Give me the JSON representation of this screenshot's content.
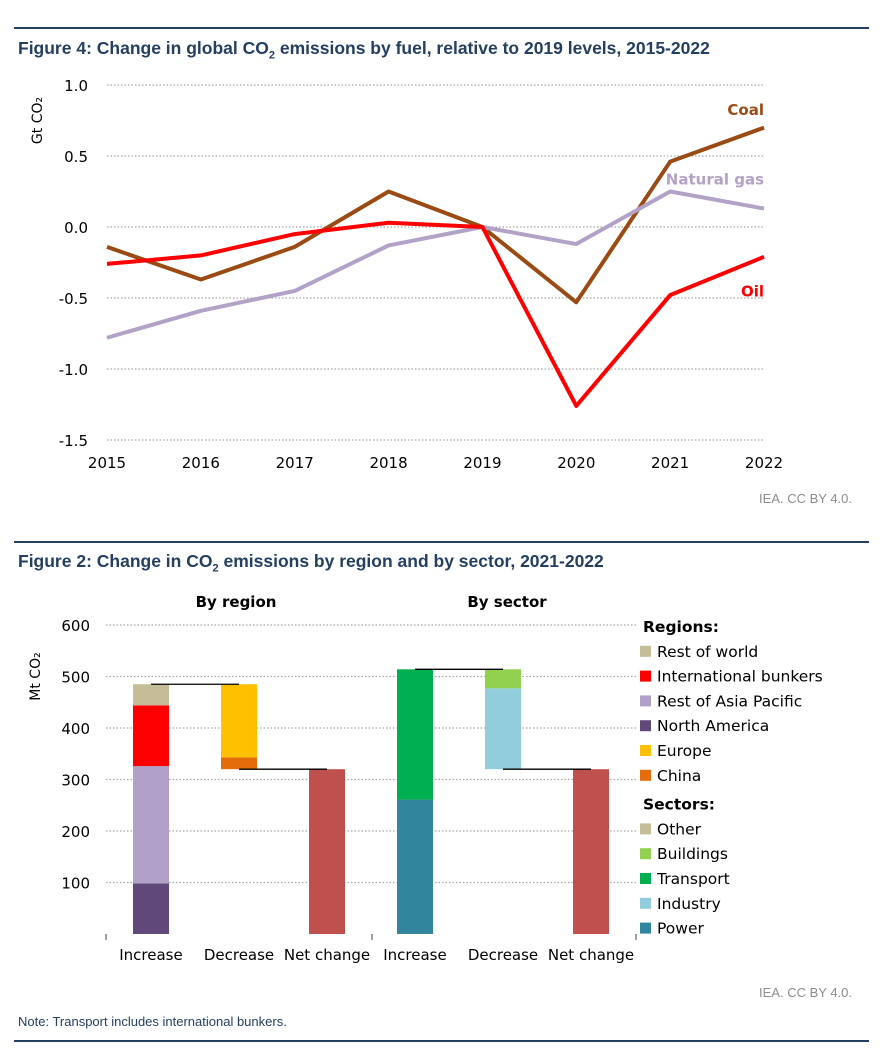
{
  "figures": {
    "fig4": {
      "title_prefix": "Figure 4: Change in global CO",
      "title_suffix": " emissions by fuel, relative to 2019 levels, 2015-2022",
      "credit": "IEA. CC BY 4.0."
    },
    "fig2": {
      "title_prefix": "Figure 2: Change in CO",
      "title_suffix": " emissions by region and by sector, 2021-2022",
      "credit": "IEA. CC BY 4.0."
    },
    "note": "Note: Transport includes international bunkers."
  },
  "chart_data": [
    {
      "type": "line",
      "ylabel": "Gt CO₂",
      "ylim": [
        -1.5,
        1.0
      ],
      "yticks": [
        "1.0",
        "0.5",
        "0.0",
        "-0.5",
        "-1.0",
        "-1.5"
      ],
      "ytick_values": [
        1.0,
        0.5,
        0.0,
        -0.5,
        -1.0,
        -1.5
      ],
      "x": [
        "2015",
        "2016",
        "2017",
        "2018",
        "2019",
        "2020",
        "2021",
        "2022"
      ],
      "grid": true,
      "series": [
        {
          "name": "Coal",
          "color": "#9a4a12",
          "values": [
            -0.14,
            -0.37,
            -0.14,
            0.25,
            0.0,
            -0.53,
            0.46,
            0.7
          ]
        },
        {
          "name": "Natural gas",
          "color": "#b3a2c7",
          "values": [
            -0.78,
            -0.59,
            -0.45,
            -0.13,
            0.0,
            -0.12,
            0.25,
            0.13
          ]
        },
        {
          "name": "Oil",
          "color": "#ff0000",
          "values": [
            -0.26,
            -0.2,
            -0.05,
            0.03,
            0.0,
            -1.26,
            -0.48,
            -0.21
          ]
        }
      ]
    },
    {
      "type": "bar",
      "subtype": "waterfall",
      "ylabel": "Mt CO₂",
      "ylim": [
        0,
        600
      ],
      "yticks": [
        "600",
        "500",
        "400",
        "300",
        "200",
        "100"
      ],
      "ytick_values": [
        600,
        500,
        400,
        300,
        200,
        100
      ],
      "grid": true,
      "groups": [
        {
          "title": "By region",
          "categories": [
            "Increase",
            "Decrease",
            "Net change"
          ],
          "bars": [
            {
              "category": "Increase",
              "segments": [
                {
                  "name": "North America",
                  "from": 0,
                  "to": 98
                },
                {
                  "name": "Rest of Asia Pacific",
                  "from": 98,
                  "to": 326
                },
                {
                  "name": "International bunkers",
                  "from": 326,
                  "to": 444
                },
                {
                  "name": "Rest of world",
                  "from": 444,
                  "to": 485
                }
              ]
            },
            {
              "category": "Decrease",
              "segments": [
                {
                  "name": "China",
                  "from": 320,
                  "to": 343
                },
                {
                  "name": "Europe",
                  "from": 343,
                  "to": 485
                }
              ]
            },
            {
              "category": "Net change",
              "segments": [
                {
                  "name": "Net change",
                  "from": 0,
                  "to": 320
                }
              ]
            }
          ],
          "connectors": [
            485,
            320
          ]
        },
        {
          "title": "By sector",
          "categories": [
            "Increase",
            "Decrease",
            "Net change"
          ],
          "bars": [
            {
              "category": "Increase",
              "segments": [
                {
                  "name": "Power",
                  "from": 0,
                  "to": 261
                },
                {
                  "name": "Transport",
                  "from": 261,
                  "to": 514
                }
              ]
            },
            {
              "category": "Decrease",
              "segments": [
                {
                  "name": "Industry",
                  "from": 320,
                  "to": 477
                },
                {
                  "name": "Buildings",
                  "from": 477,
                  "to": 514
                }
              ]
            },
            {
              "category": "Net change",
              "segments": [
                {
                  "name": "Net change",
                  "from": 0,
                  "to": 320
                }
              ]
            }
          ],
          "connectors": [
            514,
            320
          ]
        }
      ],
      "colors": {
        "Rest of world": "#c4bd97",
        "International bunkers": "#ff0000",
        "Rest of Asia Pacific": "#b1a0c7",
        "North America": "#60497a",
        "Europe": "#ffc000",
        "China": "#e46c0a",
        "Other": "#c4bd97",
        "Buildings": "#92d050",
        "Transport": "#00b050",
        "Industry": "#92cddc",
        "Power": "#31859c",
        "Net change": "#c0504d"
      },
      "legend": {
        "placement": "right",
        "sections": [
          {
            "heading": "Regions:",
            "items": [
              "Rest of world",
              "International bunkers",
              "Rest of Asia Pacific",
              "North America",
              "Europe",
              "China"
            ]
          },
          {
            "heading": "Sectors:",
            "items": [
              "Other",
              "Buildings",
              "Transport",
              "Industry",
              "Power"
            ]
          }
        ]
      }
    }
  ]
}
